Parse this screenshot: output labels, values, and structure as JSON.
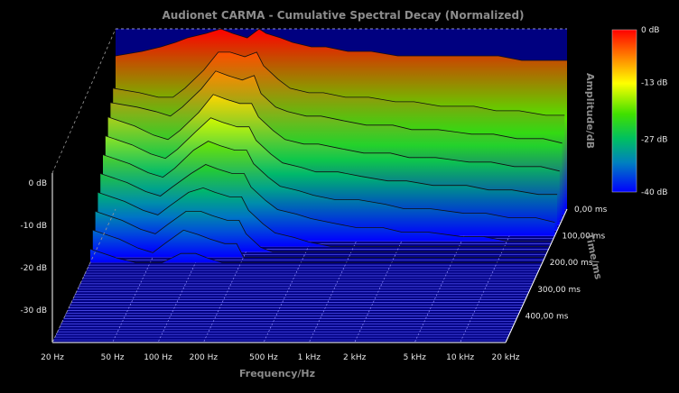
{
  "chart_data": {
    "type": "area",
    "subtype": "waterfall-3d",
    "title": "Audionet CARMA - Cumulative Spectral Decay (Normalized)",
    "xlabel": "Frequency/Hz",
    "ylabel": "Time/ms",
    "zlabel": "Amplitude/dB",
    "x_scale": "log",
    "xlim": [
      20,
      20000
    ],
    "x_ticks": [
      "20 Hz",
      "50 Hz",
      "100 Hz",
      "200 Hz",
      "500 Hz",
      "1 kHz",
      "2 kHz",
      "5 kHz",
      "10 kHz",
      "20 kHz"
    ],
    "x_tick_values": [
      20,
      50,
      100,
      200,
      500,
      1000,
      2000,
      5000,
      10000,
      20000
    ],
    "y_ticks": [
      "0,00 ms",
      "100,00 ms",
      "200,00 ms",
      "300,00 ms",
      "400,00 ms"
    ],
    "y_tick_values": [
      0,
      100,
      200,
      300,
      400
    ],
    "ylim": [
      0,
      500
    ],
    "z_ticks": [
      "0 dB",
      "-10 dB",
      "-20 dB",
      "-30 dB"
    ],
    "z_tick_values": [
      0,
      -10,
      -20,
      -30
    ],
    "zlim": [
      -40,
      0
    ],
    "colorbar": {
      "labels": [
        "0 dB",
        "-13 dB",
        "-27 dB",
        "-40 dB"
      ],
      "values": [
        0,
        -13,
        -27,
        -40
      ],
      "colors": [
        "#ff0000",
        "#ffff00",
        "#00cc00",
        "#0000ff"
      ]
    },
    "background_color": "#000080",
    "grid": true,
    "freq_points": [
      20,
      30,
      40,
      50,
      60,
      80,
      100,
      120,
      150,
      180,
      200,
      250,
      300,
      400,
      500,
      700,
      1000,
      1500,
      2000,
      3000,
      5000,
      7000,
      10000,
      15000,
      20000
    ],
    "series": [
      {
        "time_ms": 0,
        "values": [
          -6,
          -5,
          -4,
          -3,
          -2,
          -1,
          0,
          -1,
          -2,
          0,
          -1,
          -2,
          -3,
          -4,
          -4,
          -5,
          -5,
          -6,
          -6,
          -6,
          -6,
          -6,
          -7,
          -7,
          -7
        ]
      },
      {
        "time_ms": 20,
        "values": [
          -12,
          -13,
          -14,
          -14,
          -12,
          -8,
          -4,
          -4,
          -5,
          -4,
          -7,
          -10,
          -12,
          -13,
          -13,
          -14,
          -14,
          -15,
          -15,
          -16,
          -16,
          -17,
          -17,
          -18,
          -18
        ]
      },
      {
        "time_ms": 40,
        "values": [
          -14,
          -15,
          -16,
          -17,
          -15,
          -11,
          -7,
          -8,
          -9,
          -8,
          -12,
          -15,
          -16,
          -17,
          -17,
          -18,
          -19,
          -19,
          -20,
          -20,
          -21,
          -21,
          -22,
          -22,
          -23
        ]
      },
      {
        "time_ms": 60,
        "values": [
          -16,
          -18,
          -20,
          -21,
          -19,
          -15,
          -11,
          -12,
          -13,
          -13,
          -16,
          -19,
          -21,
          -22,
          -22,
          -23,
          -24,
          -24,
          -25,
          -25,
          -26,
          -26,
          -27,
          -27,
          -28
        ]
      },
      {
        "time_ms": 80,
        "values": [
          -19,
          -21,
          -23,
          -24,
          -22,
          -18,
          -15,
          -16,
          -17,
          -17,
          -20,
          -23,
          -25,
          -26,
          -27,
          -27,
          -28,
          -29,
          -29,
          -30,
          -30,
          -31,
          -31,
          -32,
          -32
        ]
      },
      {
        "time_ms": 100,
        "values": [
          -22,
          -24,
          -26,
          -27,
          -25,
          -21,
          -19,
          -20,
          -21,
          -21,
          -24,
          -27,
          -29,
          -30,
          -31,
          -32,
          -32,
          -33,
          -34,
          -34,
          -35,
          -35,
          -36,
          -36,
          -37
        ]
      },
      {
        "time_ms": 120,
        "values": [
          -25,
          -27,
          -29,
          -30,
          -28,
          -25,
          -23,
          -24,
          -25,
          -25,
          -28,
          -31,
          -33,
          -34,
          -35,
          -36,
          -37,
          -37,
          -38,
          -38,
          -39,
          -39,
          -40,
          -40,
          -40
        ]
      },
      {
        "time_ms": 140,
        "values": [
          -28,
          -30,
          -32,
          -33,
          -31,
          -28,
          -27,
          -28,
          -29,
          -29,
          -32,
          -35,
          -37,
          -38,
          -39,
          -40,
          -40,
          -40,
          -40,
          -40,
          -40,
          -40,
          -40,
          -40,
          -40
        ]
      },
      {
        "time_ms": 160,
        "values": [
          -31,
          -33,
          -35,
          -36,
          -34,
          -31,
          -31,
          -32,
          -33,
          -33,
          -36,
          -39,
          -40,
          -40,
          -40,
          -40,
          -40,
          -40,
          -40,
          -40,
          -40,
          -40,
          -40,
          -40,
          -40
        ]
      },
      {
        "time_ms": 180,
        "values": [
          -34,
          -36,
          -38,
          -39,
          -37,
          -34,
          -35,
          -36,
          -37,
          -37,
          -40,
          -40,
          -40,
          -40,
          -40,
          -40,
          -40,
          -40,
          -40,
          -40,
          -40,
          -40,
          -40,
          -40,
          -40
        ]
      },
      {
        "time_ms": 200,
        "values": [
          -37,
          -39,
          -40,
          -40,
          -40,
          -38,
          -38,
          -39,
          -40,
          -40,
          -40,
          -40,
          -40,
          -40,
          -40,
          -40,
          -40,
          -40,
          -40,
          -40,
          -40,
          -40,
          -40,
          -40,
          -40
        ]
      }
    ]
  }
}
